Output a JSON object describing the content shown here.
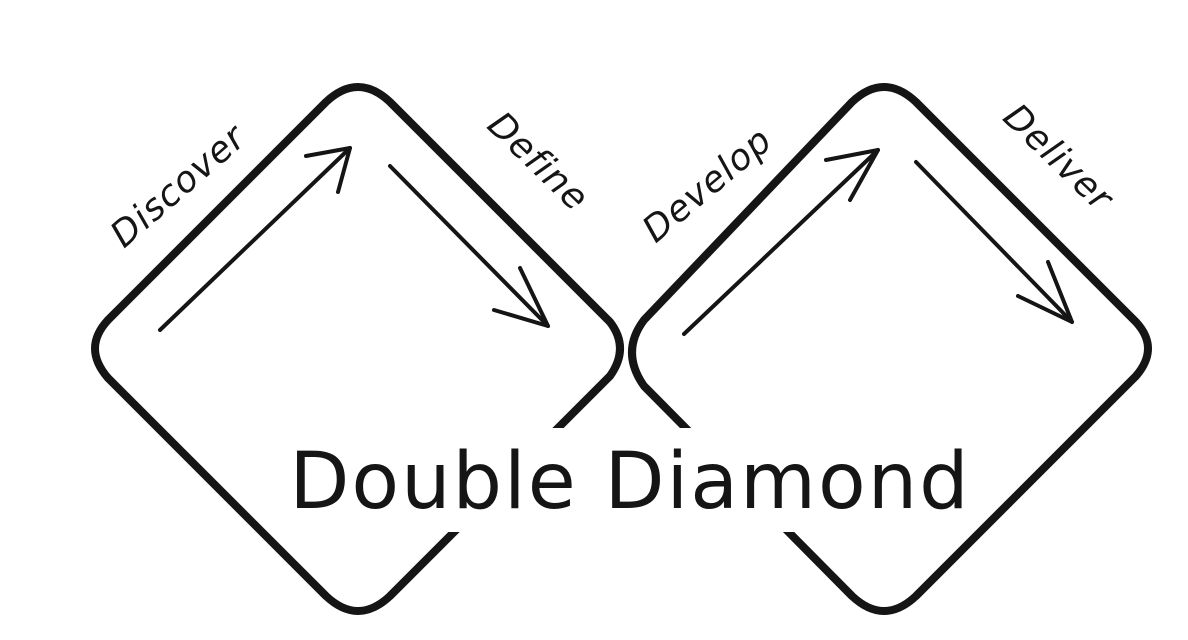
{
  "title": "Double Diamond",
  "phases": [
    {
      "label": "Discover",
      "arrow": "diagonal-up-right"
    },
    {
      "label": "Define",
      "arrow": "diagonal-down-right"
    },
    {
      "label": "Develop",
      "arrow": "diagonal-up-right"
    },
    {
      "label": "Deliver",
      "arrow": "diagonal-down-right"
    }
  ],
  "colors": {
    "stroke": "#151515",
    "background": "#ffffff"
  }
}
